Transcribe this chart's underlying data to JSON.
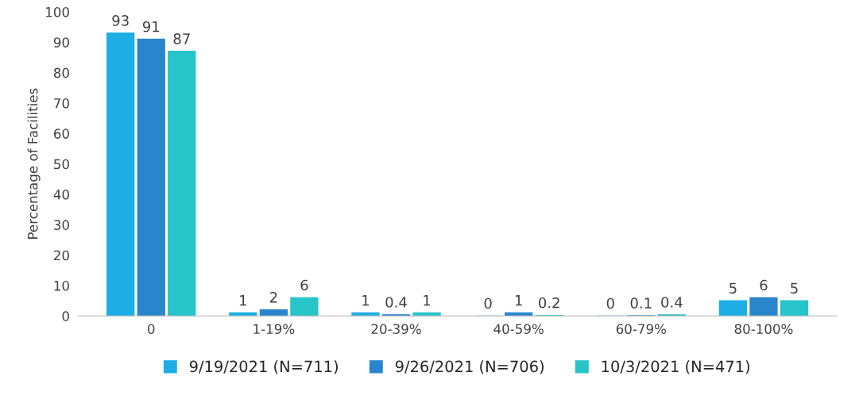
{
  "chart_data": {
    "type": "bar",
    "ylabel": "Percentage of Facilities",
    "categories": [
      "0",
      "1-19%",
      "20-39%",
      "40-59%",
      "60-79%",
      "80-100%"
    ],
    "series": [
      {
        "name": "9/19/2021 (N=711)",
        "color": "#1daee6",
        "values": [
          93,
          1,
          1,
          0,
          0,
          5
        ]
      },
      {
        "name": "9/26/2021 (N=706)",
        "color": "#2a86cc",
        "values": [
          91,
          2,
          0.4,
          1,
          0.1,
          6
        ]
      },
      {
        "name": "10/3/2021 (N=471)",
        "color": "#27c4ca",
        "values": [
          87,
          6,
          1,
          0.2,
          0.4,
          5
        ]
      }
    ],
    "ylim": [
      0,
      100
    ],
    "yticks": [
      0,
      10,
      20,
      30,
      40,
      50,
      60,
      70,
      80,
      90,
      100
    ],
    "data_labels": true,
    "grid": false,
    "legend": "bottom"
  }
}
